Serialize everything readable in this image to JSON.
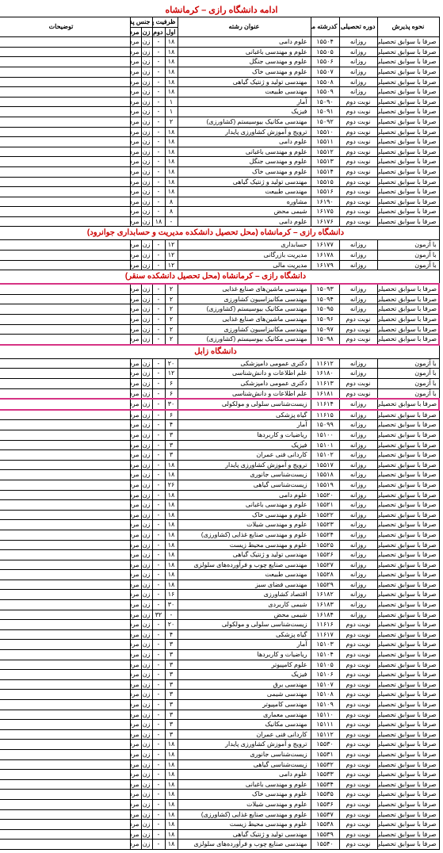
{
  "pageTitle": "ادامه دانشگاه رازی – کرمانشاه",
  "headers": {
    "admit": "نحوه پذیرش",
    "course": "دوره تحصیلی",
    "code": "کدرشته محل",
    "title": "عنوان رشته",
    "cap": "ظرفیت پذیرش نیمسال",
    "sem1": "اول",
    "sem2": "دوم",
    "gender": "جنس پذیرش",
    "gf": "زن",
    "gm": "مرد",
    "desc": "توضیحات"
  },
  "section1": {
    "rows": [
      {
        "admit": "صرفا با سوابق تحصیلی",
        "course": "روزانه",
        "code": "۱۵۵۰۴",
        "title": "علوم دامی",
        "cap": "۱۸",
        "sem": "-",
        "gf": "زن",
        "gm": "مرد",
        "desc": ""
      },
      {
        "admit": "صرفا با سوابق تحصیلی",
        "course": "روزانه",
        "code": "۱۵۵۰۵",
        "title": "علوم و مهندسی باغبانی",
        "cap": "۱۸",
        "sem": "-",
        "gf": "زن",
        "gm": "مرد",
        "desc": ""
      },
      {
        "admit": "صرفا با سوابق تحصیلی",
        "course": "روزانه",
        "code": "۱۵۵۰۶",
        "title": "علوم و مهندسی جنگل",
        "cap": "۱۸",
        "sem": "-",
        "gf": "زن",
        "gm": "مرد",
        "desc": ""
      },
      {
        "admit": "صرفا با سوابق تحصیلی",
        "course": "روزانه",
        "code": "۱۵۵۰۷",
        "title": "علوم و مهندسی خاک",
        "cap": "۱۸",
        "sem": "-",
        "gf": "زن",
        "gm": "مرد",
        "desc": ""
      },
      {
        "admit": "صرفا با سوابق تحصیلی",
        "course": "روزانه",
        "code": "۱۵۵۰۸",
        "title": "مهندسی تولید و ژنتیک گیاهی",
        "cap": "۱۸",
        "sem": "-",
        "gf": "زن",
        "gm": "مرد",
        "desc": ""
      },
      {
        "admit": "صرفا با سوابق تحصیلی",
        "course": "روزانه",
        "code": "۱۵۵۰۹",
        "title": "مهندسی طبیعت",
        "cap": "۱۸",
        "sem": "-",
        "gf": "زن",
        "gm": "مرد",
        "desc": ""
      },
      {
        "admit": "صرفا با سوابق تحصیلی",
        "course": "نوبت دوم",
        "code": "۱۵۰۹۰",
        "title": "آمار",
        "cap": "۱",
        "sem": "-",
        "gf": "زن",
        "gm": "مرد",
        "desc": ""
      },
      {
        "admit": "صرفا با سوابق تحصیلی",
        "course": "نوبت دوم",
        "code": "۱۵۰۹۱",
        "title": "فیزیک",
        "cap": "۱",
        "sem": "-",
        "gf": "زن",
        "gm": "مرد",
        "desc": ""
      },
      {
        "admit": "صرفا با سوابق تحصیلی",
        "course": "نوبت دوم",
        "code": "۱۵۰۹۲",
        "title": "مهندسی مکانیک بیوسیستم (کشاورزی)",
        "cap": "۲",
        "sem": "-",
        "gf": "زن",
        "gm": "مرد",
        "desc": ""
      },
      {
        "admit": "صرفا با سوابق تحصیلی",
        "course": "نوبت دوم",
        "code": "۱۵۵۱۰",
        "title": "ترویج و آموزش کشاورزی پایدار",
        "cap": "۱۸",
        "sem": "-",
        "gf": "زن",
        "gm": "مرد",
        "desc": ""
      },
      {
        "admit": "صرفا با سوابق تحصیلی",
        "course": "نوبت دوم",
        "code": "۱۵۵۱۱",
        "title": "علوم دامی",
        "cap": "۱۸",
        "sem": "-",
        "gf": "زن",
        "gm": "مرد",
        "desc": ""
      },
      {
        "admit": "صرفا با سوابق تحصیلی",
        "course": "نوبت دوم",
        "code": "۱۵۵۱۲",
        "title": "علوم و مهندسی باغبانی",
        "cap": "۱۸",
        "sem": "-",
        "gf": "زن",
        "gm": "مرد",
        "desc": ""
      },
      {
        "admit": "صرفا با سوابق تحصیلی",
        "course": "نوبت دوم",
        "code": "۱۵۵۱۳",
        "title": "علوم و مهندسی جنگل",
        "cap": "۱۸",
        "sem": "-",
        "gf": "زن",
        "gm": "مرد",
        "desc": ""
      },
      {
        "admit": "صرفا با سوابق تحصیلی",
        "course": "نوبت دوم",
        "code": "۱۵۵۱۴",
        "title": "علوم و مهندسی خاک",
        "cap": "۱۸",
        "sem": "-",
        "gf": "زن",
        "gm": "مرد",
        "desc": ""
      },
      {
        "admit": "صرفا با سوابق تحصیلی",
        "course": "نوبت دوم",
        "code": "۱۵۵۱۵",
        "title": "مهندسی تولید و ژنتیک گیاهی",
        "cap": "۱۸",
        "sem": "-",
        "gf": "زن",
        "gm": "مرد",
        "desc": ""
      },
      {
        "admit": "صرفا با سوابق تحصیلی",
        "course": "نوبت دوم",
        "code": "۱۵۵۱۶",
        "title": "مهندسی طبیعت",
        "cap": "۱۸",
        "sem": "-",
        "gf": "زن",
        "gm": "مرد",
        "desc": ""
      },
      {
        "admit": "صرفا با سوابق تحصیلی",
        "course": "نوبت دوم",
        "code": "۱۶۱۹۰",
        "title": "مشاوره",
        "cap": "۸",
        "sem": "-",
        "gf": "زن",
        "gm": "مرد",
        "desc": ""
      },
      {
        "admit": "صرفا با سوابق تحصیلی",
        "course": "نوبت دوم",
        "code": "۱۶۱۷۵",
        "title": "شیمی محض",
        "cap": "۸",
        "sem": "-",
        "gf": "زن",
        "gm": "مرد",
        "desc": ""
      },
      {
        "admit": "صرفا با سوابق تحصیلی",
        "course": "نوبت دوم",
        "code": "۱۶۱۷۶",
        "title": "علوم دامی",
        "cap": "-",
        "sem": "۱۸",
        "gf": "زن",
        "gm": "مرد",
        "desc": ""
      }
    ]
  },
  "section2": {
    "title": "دانشگاه رازی – کرمانشاه (محل تحصیل دانشکده مدیریت و حسابداری جوانرود)",
    "rows": [
      {
        "admit": "با آزمون",
        "course": "روزانه",
        "code": "۱۶۱۷۷",
        "title": "حسابداری",
        "cap": "۱۲",
        "sem": "-",
        "gf": "زن",
        "gm": "مرد",
        "desc": ""
      },
      {
        "admit": "با آزمون",
        "course": "روزانه",
        "code": "۱۶۱۷۸",
        "title": "مدیریت بازرگانی",
        "cap": "۱۲",
        "sem": "-",
        "gf": "زن",
        "gm": "مرد",
        "desc": ""
      },
      {
        "admit": "با آزمون",
        "course": "روزانه",
        "code": "۱۶۱۷۹",
        "title": "مدیریت مالی",
        "cap": "۱۲",
        "sem": "-",
        "gf": "زن",
        "gm": "مرد",
        "desc": ""
      }
    ]
  },
  "section3": {
    "title": "دانشگاه رازی – کرمانشاه (محل تحصیل دانشکده سنقر)",
    "rows": [
      {
        "admit": "صرفا با سوابق تحصیلی",
        "course": "روزانه",
        "code": "۱۵۰۹۳",
        "title": "مهندسی ماشین‌های صنایع غذایی",
        "cap": "۲",
        "sem": "-",
        "gf": "زن",
        "gm": "مرد",
        "desc": ""
      },
      {
        "admit": "صرفا با سوابق تحصیلی",
        "course": "روزانه",
        "code": "۱۵۰۹۴",
        "title": "مهندسی مکانیزاسیون کشاورزی",
        "cap": "۲",
        "sem": "-",
        "gf": "زن",
        "gm": "مرد",
        "desc": ""
      },
      {
        "admit": "صرفا با سوابق تحصیلی",
        "course": "روزانه",
        "code": "۱۵۰۹۵",
        "title": "مهندسی مکانیک بیوسیستم (کشاورزی)",
        "cap": "۲",
        "sem": "-",
        "gf": "زن",
        "gm": "مرد",
        "desc": ""
      },
      {
        "admit": "صرفا با سوابق تحصیلی",
        "course": "نوبت دوم",
        "code": "۱۵۰۹۶",
        "title": "مهندسی ماشین‌های صنایع غذایی",
        "cap": "۲",
        "sem": "-",
        "gf": "زن",
        "gm": "مرد",
        "desc": ""
      },
      {
        "admit": "صرفا با سوابق تحصیلی",
        "course": "نوبت دوم",
        "code": "۱۵۰۹۷",
        "title": "مهندسی مکانیزاسیون کشاورزی",
        "cap": "۲",
        "sem": "-",
        "gf": "زن",
        "gm": "مرد",
        "desc": ""
      },
      {
        "admit": "صرفا با سوابق تحصیلی",
        "course": "نوبت دوم",
        "code": "۱۵۰۹۸",
        "title": "مهندسی مکانیک بیوسیستم (کشاورزی)",
        "cap": "۲",
        "sem": "-",
        "gf": "زن",
        "gm": "مرد",
        "desc": ""
      }
    ]
  },
  "section4": {
    "title": "دانشگاه زابل",
    "rows": [
      {
        "admit": "با آزمون",
        "course": "روزانه",
        "code": "۱۱۶۱۲",
        "title": "دکتری عمومی دامپزشکی",
        "cap": "۲۰",
        "sem": "-",
        "gf": "زن",
        "gm": "مرد",
        "desc": ""
      },
      {
        "admit": "با آزمون",
        "course": "روزانه",
        "code": "۱۶۱۸۰",
        "title": "علم اطلاعات و دانش‌شناسی",
        "cap": "۱۲",
        "sem": "-",
        "gf": "زن",
        "gm": "مرد",
        "desc": ""
      },
      {
        "admit": "با آزمون",
        "course": "نوبت دوم",
        "code": "۱۱۶۱۳",
        "title": "دکتری عمومی دامپزشکی",
        "cap": "۶",
        "sem": "-",
        "gf": "زن",
        "gm": "مرد",
        "desc": ""
      },
      {
        "admit": "با آزمون",
        "course": "نوبت دوم",
        "code": "۱۶۱۸۱",
        "title": "علم اطلاعات و دانش‌شناسی",
        "cap": "۶",
        "sem": "-",
        "gf": "زن",
        "gm": "مرد",
        "desc": ""
      },
      {
        "admit": "صرفا با سوابق تحصیلی",
        "course": "روزانه",
        "code": "۱۱۶۱۴",
        "title": "زیست‌شناسی سلولی و مولکولی",
        "cap": "۳۰",
        "sem": "-",
        "gf": "زن",
        "gm": "مرد",
        "desc": "",
        "hl": true
      },
      {
        "admit": "صرفا با سوابق تحصیلی",
        "course": "روزانه",
        "code": "۱۱۶۱۵",
        "title": "گیاه پزشکی",
        "cap": "۶",
        "sem": "-",
        "gf": "زن",
        "gm": "مرد",
        "desc": ""
      },
      {
        "admit": "صرفا با سوابق تحصیلی",
        "course": "روزانه",
        "code": "۱۵۰۹۹",
        "title": "آمار",
        "cap": "۴",
        "sem": "-",
        "gf": "زن",
        "gm": "مرد",
        "desc": ""
      },
      {
        "admit": "صرفا با سوابق تحصیلی",
        "course": "روزانه",
        "code": "۱۵۱۰۰",
        "title": "ریاضیات و کاربردها",
        "cap": "۳",
        "sem": "-",
        "gf": "زن",
        "gm": "مرد",
        "desc": ""
      },
      {
        "admit": "صرفا با سوابق تحصیلی",
        "course": "روزانه",
        "code": "۱۵۱۰۱",
        "title": "فیزیک",
        "cap": "۳",
        "sem": "-",
        "gf": "زن",
        "gm": "مرد",
        "desc": ""
      },
      {
        "admit": "صرفا با سوابق تحصیلی",
        "course": "روزانه",
        "code": "۱۵۱۰۲",
        "title": "کاردانی فنی عمران",
        "cap": "۳",
        "sem": "-",
        "gf": "زن",
        "gm": "مرد",
        "desc": ""
      },
      {
        "admit": "صرفا با سوابق تحصیلی",
        "course": "روزانه",
        "code": "۱۵۵۱۷",
        "title": "ترویج و آموزش کشاورزی پایدار",
        "cap": "۱۸",
        "sem": "-",
        "gf": "زن",
        "gm": "مرد",
        "desc": ""
      },
      {
        "admit": "صرفا با سوابق تحصیلی",
        "course": "روزانه",
        "code": "۱۵۵۱۸",
        "title": "زیست‌شناسی جانوری",
        "cap": "۱۸",
        "sem": "-",
        "gf": "زن",
        "gm": "مرد",
        "desc": ""
      },
      {
        "admit": "صرفا با سوابق تحصیلی",
        "course": "روزانه",
        "code": "۱۵۵۱۹",
        "title": "زیست‌شناسی گیاهی",
        "cap": "۲۶",
        "sem": "-",
        "gf": "زن",
        "gm": "مرد",
        "desc": ""
      },
      {
        "admit": "صرفا با سوابق تحصیلی",
        "course": "روزانه",
        "code": "۱۵۵۲۰",
        "title": "علوم دامی",
        "cap": "۱۸",
        "sem": "-",
        "gf": "زن",
        "gm": "مرد",
        "desc": ""
      },
      {
        "admit": "صرفا با سوابق تحصیلی",
        "course": "روزانه",
        "code": "۱۵۵۲۱",
        "title": "علوم و مهندسی باغبانی",
        "cap": "۱۸",
        "sem": "-",
        "gf": "زن",
        "gm": "مرد",
        "desc": ""
      },
      {
        "admit": "صرفا با سوابق تحصیلی",
        "course": "روزانه",
        "code": "۱۵۵۲۲",
        "title": "علوم و مهندسی خاک",
        "cap": "۱۸",
        "sem": "-",
        "gf": "زن",
        "gm": "مرد",
        "desc": ""
      },
      {
        "admit": "صرفا با سوابق تحصیلی",
        "course": "روزانه",
        "code": "۱۵۵۲۳",
        "title": "علوم و مهندسی شیلات",
        "cap": "۱۸",
        "sem": "-",
        "gf": "زن",
        "gm": "مرد",
        "desc": ""
      },
      {
        "admit": "صرفا با سوابق تحصیلی",
        "course": "روزانه",
        "code": "۱۵۵۲۴",
        "title": "علوم و مهندسی صنایع غذایی (کشاورزی)",
        "cap": "۱۸",
        "sem": "-",
        "gf": "زن",
        "gm": "مرد",
        "desc": ""
      },
      {
        "admit": "صرفا با سوابق تحصیلی",
        "course": "روزانه",
        "code": "۱۵۵۲۵",
        "title": "علوم و مهندسی محیط زیست",
        "cap": "۱۸",
        "sem": "-",
        "gf": "زن",
        "gm": "مرد",
        "desc": ""
      },
      {
        "admit": "صرفا با سوابق تحصیلی",
        "course": "روزانه",
        "code": "۱۵۵۲۶",
        "title": "مهندسی تولید و ژنتیک گیاهی",
        "cap": "۱۸",
        "sem": "-",
        "gf": "زن",
        "gm": "مرد",
        "desc": ""
      },
      {
        "admit": "صرفا با سوابق تحصیلی",
        "course": "روزانه",
        "code": "۱۵۵۲۷",
        "title": "مهندسی صنایع چوب و فرآورده‌های سلولزی",
        "cap": "۱۸",
        "sem": "-",
        "gf": "زن",
        "gm": "مرد",
        "desc": ""
      },
      {
        "admit": "صرفا با سوابق تحصیلی",
        "course": "روزانه",
        "code": "۱۵۵۲۸",
        "title": "مهندسی طبیعت",
        "cap": "۱۸",
        "sem": "-",
        "gf": "زن",
        "gm": "مرد",
        "desc": ""
      },
      {
        "admit": "صرفا با سوابق تحصیلی",
        "course": "روزانه",
        "code": "۱۵۵۲۹",
        "title": "مهندسی فضای سبز",
        "cap": "۱۸",
        "sem": "-",
        "gf": "زن",
        "gm": "مرد",
        "desc": ""
      },
      {
        "admit": "صرفا با سوابق تحصیلی",
        "course": "روزانه",
        "code": "۱۶۱۸۲",
        "title": "اقتصاد کشاورزی",
        "cap": "۱۶",
        "sem": "-",
        "gf": "زن",
        "gm": "مرد",
        "desc": ""
      },
      {
        "admit": "صرفا با سوابق تحصیلی",
        "course": "روزانه",
        "code": "۱۶۱۸۳",
        "title": "شیمی کاربردی",
        "cap": "۳۰",
        "sem": "-",
        "gf": "زن",
        "gm": "مرد",
        "desc": ""
      },
      {
        "admit": "صرفا با سوابق تحصیلی",
        "course": "روزانه",
        "code": "۱۶۱۸۴",
        "title": "شیمی محض",
        "cap": "-",
        "sem": "۳۲",
        "gf": "زن",
        "gm": "مرد",
        "desc": ""
      },
      {
        "admit": "صرفا با سوابق تحصیلی",
        "course": "نوبت دوم",
        "code": "۱۱۶۱۶",
        "title": "زیست‌شناسی سلولی و مولکولی",
        "cap": "۲۰",
        "sem": "-",
        "gf": "زن",
        "gm": "مرد",
        "desc": ""
      },
      {
        "admit": "صرفا با سوابق تحصیلی",
        "course": "نوبت دوم",
        "code": "۱۱۶۱۷",
        "title": "گیاه پزشکی",
        "cap": "۴",
        "sem": "-",
        "gf": "زن",
        "gm": "مرد",
        "desc": ""
      },
      {
        "admit": "صرفا با سوابق تحصیلی",
        "course": "نوبت دوم",
        "code": "۱۵۱۰۳",
        "title": "آمار",
        "cap": "۳",
        "sem": "-",
        "gf": "زن",
        "gm": "مرد",
        "desc": ""
      },
      {
        "admit": "صرفا با سوابق تحصیلی",
        "course": "نوبت دوم",
        "code": "۱۵۱۰۴",
        "title": "ریاضیات و کاربردها",
        "cap": "۳",
        "sem": "-",
        "gf": "زن",
        "gm": "مرد",
        "desc": ""
      },
      {
        "admit": "صرفا با سوابق تحصیلی",
        "course": "نوبت دوم",
        "code": "۱۵۱۰۵",
        "title": "علوم کامپیوتر",
        "cap": "۳",
        "sem": "-",
        "gf": "زن",
        "gm": "مرد",
        "desc": ""
      },
      {
        "admit": "صرفا با سوابق تحصیلی",
        "course": "نوبت دوم",
        "code": "۱۵۱۰۶",
        "title": "فیزیک",
        "cap": "۳",
        "sem": "-",
        "gf": "زن",
        "gm": "مرد",
        "desc": ""
      },
      {
        "admit": "صرفا با سوابق تحصیلی",
        "course": "نوبت دوم",
        "code": "۱۵۱۰۷",
        "title": "مهندسی برق",
        "cap": "۳",
        "sem": "-",
        "gf": "زن",
        "gm": "مرد",
        "desc": ""
      },
      {
        "admit": "صرفا با سوابق تحصیلی",
        "course": "نوبت دوم",
        "code": "۱۵۱۰۸",
        "title": "مهندسی شیمی",
        "cap": "۳",
        "sem": "-",
        "gf": "زن",
        "gm": "مرد",
        "desc": ""
      },
      {
        "admit": "صرفا با سوابق تحصیلی",
        "course": "نوبت دوم",
        "code": "۱۵۱۰۹",
        "title": "مهندسی کامپیوتر",
        "cap": "۳",
        "sem": "-",
        "gf": "زن",
        "gm": "مرد",
        "desc": ""
      },
      {
        "admit": "صرفا با سوابق تحصیلی",
        "course": "نوبت دوم",
        "code": "۱۵۱۱۰",
        "title": "مهندسی معماری",
        "cap": "۳",
        "sem": "-",
        "gf": "زن",
        "gm": "مرد",
        "desc": ""
      },
      {
        "admit": "صرفا با سوابق تحصیلی",
        "course": "نوبت دوم",
        "code": "۱۵۱۱۱",
        "title": "مهندسی مکانیک",
        "cap": "۳",
        "sem": "-",
        "gf": "زن",
        "gm": "مرد",
        "desc": ""
      },
      {
        "admit": "صرفا با سوابق تحصیلی",
        "course": "نوبت دوم",
        "code": "۱۵۱۱۲",
        "title": "کاردانی فنی عمران",
        "cap": "۳",
        "sem": "-",
        "gf": "زن",
        "gm": "مرد",
        "desc": ""
      },
      {
        "admit": "صرفا با سوابق تحصیلی",
        "course": "نوبت دوم",
        "code": "۱۵۵۳۰",
        "title": "ترویج و آموزش کشاورزی پایدار",
        "cap": "۱۸",
        "sem": "-",
        "gf": "زن",
        "gm": "مرد",
        "desc": ""
      },
      {
        "admit": "صرفا با سوابق تحصیلی",
        "course": "نوبت دوم",
        "code": "۱۵۵۳۱",
        "title": "زیست‌شناسی جانوری",
        "cap": "۱۸",
        "sem": "-",
        "gf": "زن",
        "gm": "مرد",
        "desc": ""
      },
      {
        "admit": "صرفا با سوابق تحصیلی",
        "course": "نوبت دوم",
        "code": "۱۵۵۳۲",
        "title": "زیست‌شناسی گیاهی",
        "cap": "۱۸",
        "sem": "-",
        "gf": "زن",
        "gm": "مرد",
        "desc": ""
      },
      {
        "admit": "صرفا با سوابق تحصیلی",
        "course": "نوبت دوم",
        "code": "۱۵۵۳۳",
        "title": "علوم دامی",
        "cap": "۱۸",
        "sem": "-",
        "gf": "زن",
        "gm": "مرد",
        "desc": ""
      },
      {
        "admit": "صرفا با سوابق تحصیلی",
        "course": "نوبت دوم",
        "code": "۱۵۵۳۴",
        "title": "علوم و مهندسی باغبانی",
        "cap": "۱۸",
        "sem": "-",
        "gf": "زن",
        "gm": "مرد",
        "desc": ""
      },
      {
        "admit": "صرفا با سوابق تحصیلی",
        "course": "نوبت دوم",
        "code": "۱۵۵۳۵",
        "title": "علوم و مهندسی خاک",
        "cap": "۱۸",
        "sem": "-",
        "gf": "زن",
        "gm": "مرد",
        "desc": ""
      },
      {
        "admit": "صرفا با سوابق تحصیلی",
        "course": "نوبت دوم",
        "code": "۱۵۵۳۶",
        "title": "علوم و مهندسی شیلات",
        "cap": "۱۸",
        "sem": "-",
        "gf": "زن",
        "gm": "مرد",
        "desc": ""
      },
      {
        "admit": "صرفا با سوابق تحصیلی",
        "course": "نوبت دوم",
        "code": "۱۵۵۳۷",
        "title": "علوم و مهندسی صنایع غذایی (کشاورزی)",
        "cap": "۱۸",
        "sem": "-",
        "gf": "زن",
        "gm": "مرد",
        "desc": ""
      },
      {
        "admit": "صرفا با سوابق تحصیلی",
        "course": "نوبت دوم",
        "code": "۱۵۵۳۸",
        "title": "علوم و مهندسی محیط زیست",
        "cap": "۱۸",
        "sem": "-",
        "gf": "زن",
        "gm": "مرد",
        "desc": ""
      },
      {
        "admit": "صرفا با سوابق تحصیلی",
        "course": "نوبت دوم",
        "code": "۱۵۵۳۹",
        "title": "مهندسی تولید و ژنتیک گیاهی",
        "cap": "۱۸",
        "sem": "-",
        "gf": "زن",
        "gm": "مرد",
        "desc": ""
      },
      {
        "admit": "صرفا با سوابق تحصیلی",
        "course": "نوبت دوم",
        "code": "۱۵۵۴۰",
        "title": "مهندسی صنایع چوب و فرآورده‌های سلولزی",
        "cap": "۱۸",
        "sem": "-",
        "gf": "زن",
        "gm": "مرد",
        "desc": ""
      }
    ]
  }
}
